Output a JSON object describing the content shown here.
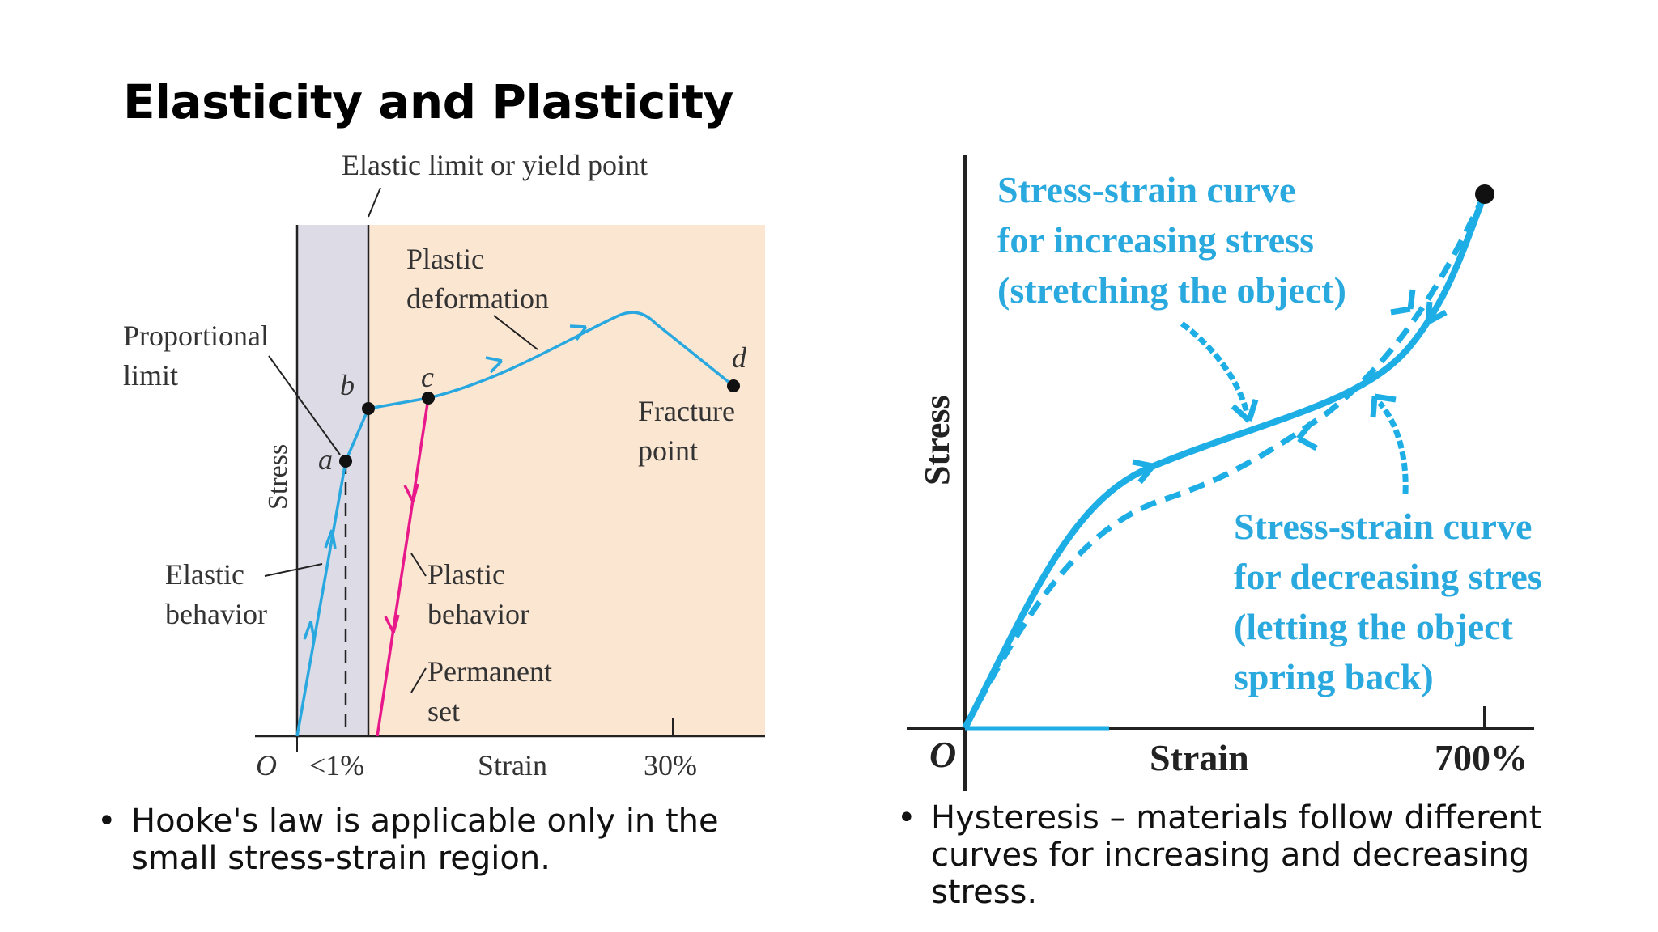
{
  "slide": {
    "title": "Elasticity and Plasticity"
  },
  "left_diagram": {
    "callout_elastic_limit": "Elastic limit or yield point",
    "callout_proportional_1": "Proportional",
    "callout_proportional_2": "limit",
    "region_plastic_deformation_1": "Plastic",
    "region_plastic_deformation_2": "deformation",
    "label_fracture_1": "Fracture",
    "label_fracture_2": "point",
    "label_elastic_behavior_1": "Elastic",
    "label_elastic_behavior_2": "behavior",
    "label_plastic_behavior_1": "Plastic",
    "label_plastic_behavior_2": "behavior",
    "label_permanent_set_1": "Permanent",
    "label_permanent_set_2": "set",
    "point_a": "a",
    "point_b": "b",
    "point_c": "c",
    "point_d": "d",
    "origin": "O",
    "tick_less_1pct": "<1%",
    "tick_30pct": "30%",
    "x_axis_label": "Strain",
    "y_axis_label": "Stress",
    "colors": {
      "elastic_region": "#dcdbe6",
      "plastic_region": "#fbe6d2",
      "curve": "#29a8e0",
      "unload": "#e8198b"
    }
  },
  "right_diagram": {
    "increasing_label_1": "Stress-strain curve",
    "increasing_label_2": "for increasing stress",
    "increasing_label_3": "(stretching the object)",
    "decreasing_label_1": "Stress-strain curve",
    "decreasing_label_2": "for decreasing stres",
    "decreasing_label_3": "(letting the object",
    "decreasing_label_4": "spring back)",
    "origin": "O",
    "x_axis_label": "Strain",
    "tick_700pct": "700%",
    "y_axis_label": "Stress",
    "colors": {
      "curve": "#1eaee6",
      "text": "#2aa9df"
    }
  },
  "bullets": {
    "left_line_1": "Hooke's law is applicable only in the",
    "left_line_2": "small stress-strain region.",
    "right_line_1": "Hysteresis – materials follow different",
    "right_line_2": "curves for increasing and decreasing",
    "right_line_3": "stress."
  }
}
